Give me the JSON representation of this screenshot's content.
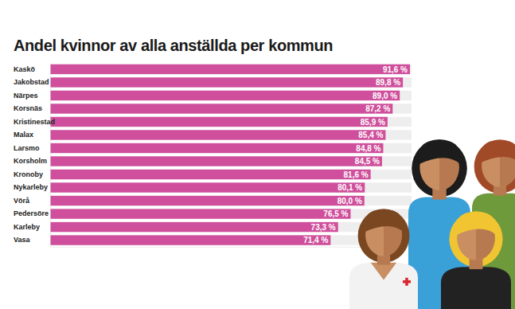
{
  "chart_data": {
    "type": "bar",
    "orientation": "horizontal",
    "title": "Andel kvinnor av alla anställda per kommun",
    "categories": [
      "Kaskö",
      "Jakobstad",
      "Närpes",
      "Korsnäs",
      "Kristinestad",
      "Malax",
      "Larsmo",
      "Korsholm",
      "Kronoby",
      "Nykarleby",
      "Vörå",
      "Pedersöre",
      "Karleby",
      "Vasa"
    ],
    "values": [
      91.6,
      89.8,
      89.0,
      87.2,
      85.9,
      85.4,
      84.8,
      84.5,
      81.6,
      80.1,
      80.0,
      76.5,
      73.3,
      71.4
    ],
    "value_labels": [
      "91,6 %",
      "89,8 %",
      "89,0 %",
      "87,2 %",
      "85,9 %",
      "85,4 %",
      "84,8 %",
      "84,5 %",
      "81,6 %",
      "80,1 %",
      "80,0 %",
      "76,5 %",
      "73,3 %",
      "71,4 %"
    ],
    "color": "#cf4f9c",
    "xlim": [
      0,
      92
    ],
    "xticks": [],
    "data_labels": true,
    "tick_labels": "y",
    "grid": false
  }
}
